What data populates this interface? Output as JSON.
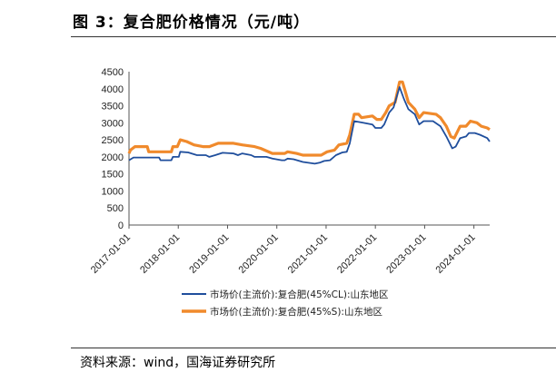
{
  "header": {
    "title": "图 3：复合肥价格情况（元/吨）"
  },
  "footer": {
    "source": "资料来源：wind，国海证券研究所"
  },
  "chart_data": {
    "type": "line",
    "title": "复合肥价格情况（元/吨）",
    "xlabel": "",
    "ylabel": "",
    "ylim": [
      0,
      4500
    ],
    "xlim": [
      2017.0,
      2024.32
    ],
    "y_ticks": [
      "0",
      "500",
      "1000",
      "1500",
      "2000",
      "2500",
      "3000",
      "3500",
      "4000",
      "4500"
    ],
    "x_ticks": [
      {
        "label": "2017-01-01",
        "x": 2017
      },
      {
        "label": "2018-01-01",
        "x": 2018
      },
      {
        "label": "2019-01-01",
        "x": 2019
      },
      {
        "label": "2020-01-01",
        "x": 2020
      },
      {
        "label": "2021-01-01",
        "x": 2021
      },
      {
        "label": "2022-01-01",
        "x": 2022
      },
      {
        "label": "2023-01-01",
        "x": 2023
      },
      {
        "label": "2024-01-01",
        "x": 2024
      }
    ],
    "grid": false,
    "legend_position": "bottom",
    "series": [
      {
        "name": "市场价(主流价):复合肥(45%CL):山东地区",
        "color": "#1f4e9c",
        "points": [
          [
            2017.0,
            1900
          ],
          [
            2017.09,
            1980
          ],
          [
            2017.61,
            1980
          ],
          [
            2017.64,
            1900
          ],
          [
            2017.86,
            1900
          ],
          [
            2017.89,
            2000
          ],
          [
            2018.01,
            2000
          ],
          [
            2018.04,
            2150
          ],
          [
            2018.2,
            2130
          ],
          [
            2018.38,
            2050
          ],
          [
            2018.56,
            2050
          ],
          [
            2018.63,
            2000
          ],
          [
            2018.75,
            2050
          ],
          [
            2018.9,
            2120
          ],
          [
            2019.12,
            2100
          ],
          [
            2019.21,
            2050
          ],
          [
            2019.3,
            2100
          ],
          [
            2019.48,
            2050
          ],
          [
            2019.55,
            2000
          ],
          [
            2019.79,
            2000
          ],
          [
            2019.91,
            1950
          ],
          [
            2020.1,
            1900
          ],
          [
            2020.16,
            1900
          ],
          [
            2020.22,
            1950
          ],
          [
            2020.34,
            1930
          ],
          [
            2020.53,
            1850
          ],
          [
            2020.77,
            1800
          ],
          [
            2020.87,
            1830
          ],
          [
            2020.96,
            1880
          ],
          [
            2021.08,
            1900
          ],
          [
            2021.2,
            2050
          ],
          [
            2021.33,
            2130
          ],
          [
            2021.42,
            2150
          ],
          [
            2021.48,
            2400
          ],
          [
            2021.57,
            3050
          ],
          [
            2021.75,
            3000
          ],
          [
            2021.94,
            2950
          ],
          [
            2022.0,
            2850
          ],
          [
            2022.12,
            2850
          ],
          [
            2022.18,
            2950
          ],
          [
            2022.28,
            3300
          ],
          [
            2022.37,
            3450
          ],
          [
            2022.49,
            4050
          ],
          [
            2022.58,
            3700
          ],
          [
            2022.67,
            3400
          ],
          [
            2022.8,
            3250
          ],
          [
            2022.89,
            2950
          ],
          [
            2022.98,
            3050
          ],
          [
            2023.17,
            3050
          ],
          [
            2023.32,
            2900
          ],
          [
            2023.44,
            2600
          ],
          [
            2023.56,
            2250
          ],
          [
            2023.63,
            2300
          ],
          [
            2023.72,
            2550
          ],
          [
            2023.84,
            2600
          ],
          [
            2023.9,
            2700
          ],
          [
            2024.02,
            2700
          ],
          [
            2024.12,
            2650
          ],
          [
            2024.27,
            2550
          ],
          [
            2024.32,
            2450
          ]
        ]
      },
      {
        "name": "市场价(主流价):复合肥(45%S):山东地区",
        "color": "#f08a2c",
        "points": [
          [
            2017.0,
            2100
          ],
          [
            2017.03,
            2200
          ],
          [
            2017.12,
            2300
          ],
          [
            2017.37,
            2300
          ],
          [
            2017.4,
            2150
          ],
          [
            2017.86,
            2150
          ],
          [
            2017.89,
            2300
          ],
          [
            2017.98,
            2300
          ],
          [
            2018.04,
            2500
          ],
          [
            2018.17,
            2450
          ],
          [
            2018.32,
            2350
          ],
          [
            2018.5,
            2300
          ],
          [
            2018.63,
            2300
          ],
          [
            2018.81,
            2400
          ],
          [
            2019.12,
            2400
          ],
          [
            2019.3,
            2350
          ],
          [
            2019.55,
            2300
          ],
          [
            2019.67,
            2250
          ],
          [
            2019.91,
            2100
          ],
          [
            2020.16,
            2100
          ],
          [
            2020.22,
            2150
          ],
          [
            2020.4,
            2100
          ],
          [
            2020.53,
            2050
          ],
          [
            2020.77,
            2050
          ],
          [
            2020.9,
            2050
          ],
          [
            2021.02,
            2150
          ],
          [
            2021.17,
            2200
          ],
          [
            2021.26,
            2350
          ],
          [
            2021.42,
            2400
          ],
          [
            2021.48,
            2650
          ],
          [
            2021.57,
            3250
          ],
          [
            2021.66,
            3250
          ],
          [
            2021.72,
            3150
          ],
          [
            2021.94,
            3200
          ],
          [
            2022.03,
            3100
          ],
          [
            2022.12,
            3100
          ],
          [
            2022.21,
            3300
          ],
          [
            2022.28,
            3500
          ],
          [
            2022.4,
            3600
          ],
          [
            2022.49,
            4200
          ],
          [
            2022.55,
            4200
          ],
          [
            2022.61,
            3900
          ],
          [
            2022.67,
            3600
          ],
          [
            2022.8,
            3400
          ],
          [
            2022.89,
            3150
          ],
          [
            2022.98,
            3300
          ],
          [
            2023.23,
            3250
          ],
          [
            2023.32,
            3150
          ],
          [
            2023.44,
            2900
          ],
          [
            2023.53,
            2600
          ],
          [
            2023.6,
            2550
          ],
          [
            2023.72,
            2900
          ],
          [
            2023.84,
            2900
          ],
          [
            2023.93,
            3050
          ],
          [
            2024.06,
            3000
          ],
          [
            2024.15,
            2900
          ],
          [
            2024.27,
            2850
          ],
          [
            2024.32,
            2800
          ]
        ]
      }
    ]
  }
}
